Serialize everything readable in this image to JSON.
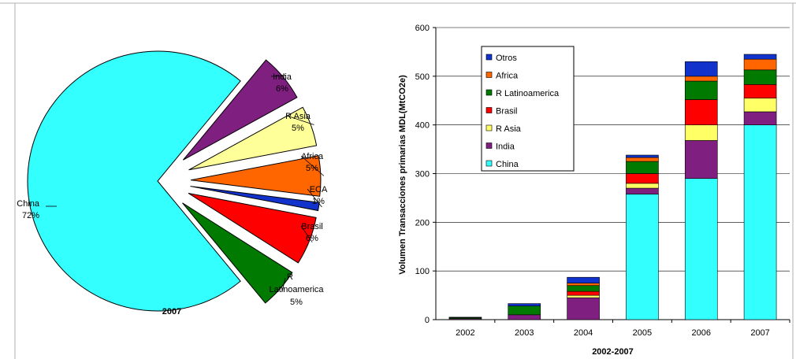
{
  "chart_data": [
    {
      "type": "pie",
      "title": "2007",
      "slices": [
        {
          "name": "China",
          "pct_label": "72%",
          "value": 72,
          "color": "#33ffff"
        },
        {
          "name": "India",
          "pct_label": "6%",
          "value": 6,
          "color": "#7f1f7f"
        },
        {
          "name": "R Asia",
          "pct_label": "5%",
          "value": 5,
          "color": "#ffff99"
        },
        {
          "name": "Africa",
          "pct_label": "5%",
          "value": 5,
          "color": "#ff6600"
        },
        {
          "name": "ECA",
          "pct_label": "1%",
          "value": 1,
          "color": "#1133cc"
        },
        {
          "name": "Brasil",
          "pct_label": "6%",
          "value": 6,
          "color": "#ff0000"
        },
        {
          "name": "R Latinoamerica",
          "pct_label": "5%",
          "value": 5,
          "color": "#007a00"
        }
      ]
    },
    {
      "type": "bar",
      "stacked": true,
      "xlabel": "2002-2007",
      "ylabel": "Volumen Transacciones primarias MDL(MtCO2e)",
      "ylim": [
        0,
        600
      ],
      "yticks": [
        0,
        100,
        200,
        300,
        400,
        500,
        600
      ],
      "categories": [
        "2002",
        "2003",
        "2004",
        "2005",
        "2006",
        "2007"
      ],
      "grid": true,
      "legend_position": "top-left",
      "series": [
        {
          "name": "China",
          "color": "#33ffff",
          "values": [
            0,
            0,
            0,
            258,
            290,
            400
          ]
        },
        {
          "name": "India",
          "color": "#7f1f7f",
          "values": [
            2,
            10,
            45,
            12,
            78,
            27
          ]
        },
        {
          "name": "R Asia",
          "color": "#ffff66",
          "values": [
            0,
            0,
            5,
            10,
            32,
            28
          ]
        },
        {
          "name": "Brasil",
          "color": "#ff0000",
          "values": [
            0,
            0,
            8,
            20,
            52,
            28
          ]
        },
        {
          "name": "R Latinoamerica",
          "color": "#007a00",
          "values": [
            2,
            18,
            12,
            25,
            38,
            30
          ]
        },
        {
          "name": "Africa",
          "color": "#ff6600",
          "values": [
            0,
            0,
            5,
            8,
            10,
            22
          ]
        },
        {
          "name": "Otros",
          "color": "#1133cc",
          "values": [
            1,
            5,
            12,
            5,
            30,
            10
          ]
        }
      ],
      "legend_order": [
        "Otros",
        "Africa",
        "R Latinoamerica",
        "Brasil",
        "R Asia",
        "India",
        "China"
      ]
    }
  ]
}
